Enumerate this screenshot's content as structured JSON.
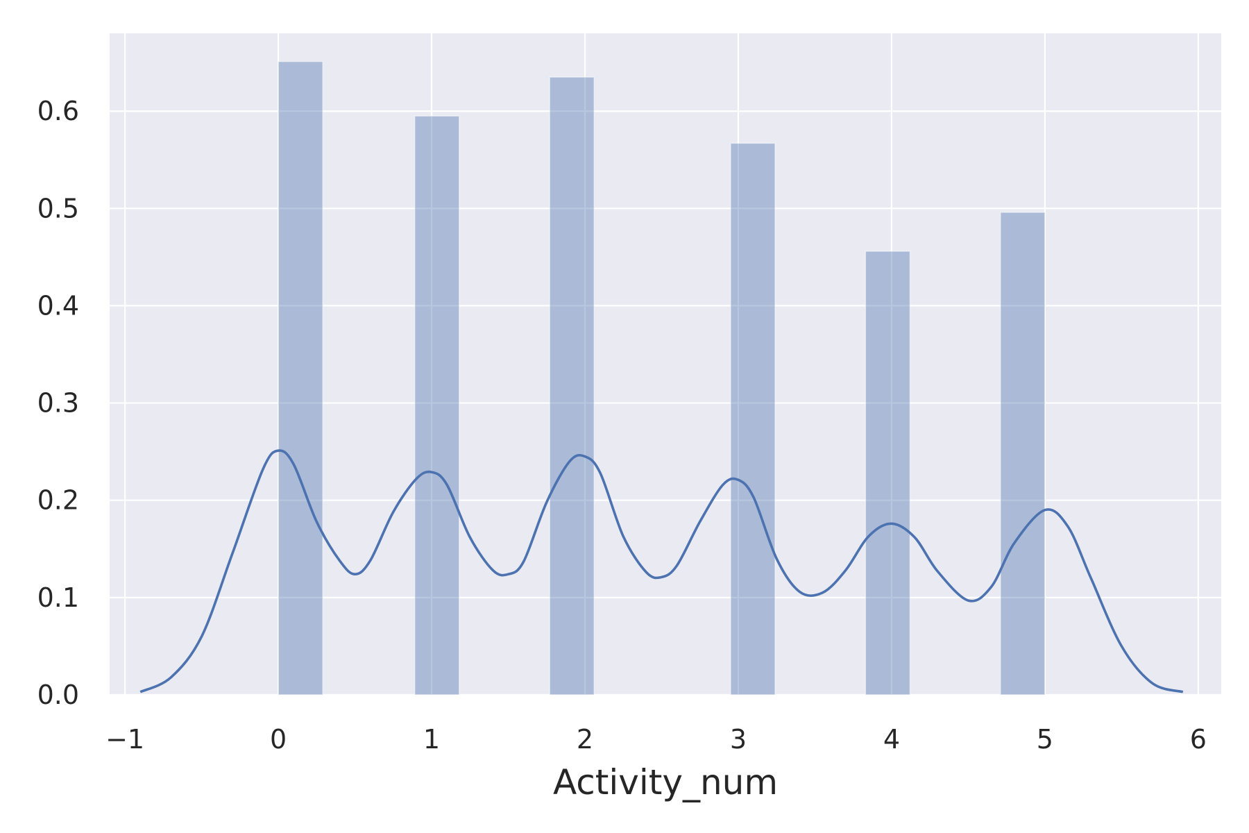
{
  "chart_data": {
    "type": "bar",
    "overlay": "line",
    "title": "",
    "xlabel": "Activity_num",
    "ylabel": "",
    "xlim": [
      -1.1,
      6.15
    ],
    "ylim": [
      0,
      0.68
    ],
    "grid": true,
    "xticks": [
      -1,
      0,
      1,
      2,
      3,
      4,
      5,
      6
    ],
    "yticks": [
      0.0,
      0.1,
      0.2,
      0.3,
      0.4,
      0.5,
      0.6
    ],
    "xtick_labels": [
      "−1",
      "0",
      "1",
      "2",
      "3",
      "4",
      "5",
      "6"
    ],
    "ytick_labels": [
      "0.0",
      "0.1",
      "0.2",
      "0.3",
      "0.4",
      "0.5",
      "0.6"
    ],
    "histogram": {
      "bars": [
        {
          "x0": 0.0,
          "x1": 0.29,
          "value": 0.651
        },
        {
          "x0": 0.89,
          "x1": 1.18,
          "value": 0.595
        },
        {
          "x0": 1.77,
          "x1": 2.06,
          "value": 0.635
        },
        {
          "x0": 2.95,
          "x1": 3.24,
          "value": 0.567
        },
        {
          "x0": 3.83,
          "x1": 4.12,
          "value": 0.456
        },
        {
          "x0": 4.71,
          "x1": 5.0,
          "value": 0.496
        }
      ],
      "color": "#4c72b0",
      "opacity": 0.4
    },
    "kde": {
      "x": [
        -0.9,
        -0.7,
        -0.5,
        -0.3,
        -0.1,
        0.0,
        0.1,
        0.25,
        0.4,
        0.5,
        0.6,
        0.75,
        0.9,
        1.0,
        1.1,
        1.25,
        1.4,
        1.5,
        1.6,
        1.75,
        1.9,
        2.0,
        2.1,
        2.25,
        2.4,
        2.5,
        2.6,
        2.75,
        2.9,
        3.0,
        3.1,
        3.25,
        3.4,
        3.55,
        3.7,
        3.85,
        4.0,
        4.15,
        4.3,
        4.5,
        4.65,
        4.8,
        5.0,
        5.15,
        5.3,
        5.5,
        5.7,
        5.9
      ],
      "y": [
        0.003,
        0.018,
        0.06,
        0.145,
        0.232,
        0.251,
        0.237,
        0.178,
        0.138,
        0.124,
        0.138,
        0.188,
        0.222,
        0.229,
        0.216,
        0.162,
        0.128,
        0.124,
        0.137,
        0.198,
        0.24,
        0.245,
        0.228,
        0.163,
        0.126,
        0.121,
        0.133,
        0.178,
        0.216,
        0.221,
        0.203,
        0.14,
        0.106,
        0.105,
        0.128,
        0.163,
        0.176,
        0.162,
        0.127,
        0.097,
        0.111,
        0.156,
        0.19,
        0.173,
        0.12,
        0.05,
        0.012,
        0.003
      ],
      "color": "#4c72b0"
    }
  }
}
